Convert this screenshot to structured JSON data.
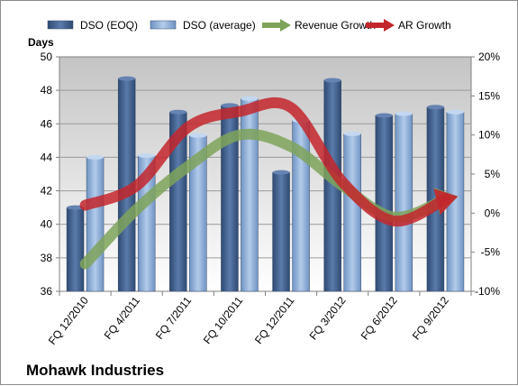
{
  "chart_data": {
    "type": "bar",
    "company": "Mohawk Industries",
    "ylabel": "Days",
    "ylim": [
      36,
      50
    ],
    "y_ticks": [
      "36",
      "38",
      "40",
      "42",
      "44",
      "46",
      "48",
      "50"
    ],
    "y2lim": [
      -10,
      20
    ],
    "y2_ticks": [
      "-10%",
      "-5%",
      "0%",
      "5%",
      "10%",
      "15%",
      "20%"
    ],
    "categories": [
      "FQ 12/2010",
      "FQ 4/2011",
      "FQ 7/2011",
      "FQ 10/2011",
      "FQ 12/2011",
      "FQ 3/2012",
      "FQ 6/2012",
      "FQ 9/2012"
    ],
    "legend_position": "top",
    "grid": "horizontal",
    "series": [
      {
        "name": "DSO (EOQ)",
        "type": "bar",
        "axis": "left",
        "color": "#4a6894",
        "values": [
          41.0,
          48.7,
          46.7,
          47.1,
          43.1,
          48.6,
          46.5,
          47.0
        ]
      },
      {
        "name": "DSO (average)",
        "type": "bar",
        "axis": "left",
        "color": "#8eb0db",
        "values": [
          44.0,
          44.1,
          45.3,
          47.5,
          46.2,
          45.4,
          46.6,
          46.7
        ]
      },
      {
        "name": "Revenue Growth",
        "type": "line",
        "axis": "right",
        "color": "#7ea35a",
        "values": [
          -6.5,
          0.5,
          6.0,
          10.0,
          8.5,
          3.5,
          -0.5,
          1.8
        ]
      },
      {
        "name": "AR Growth",
        "type": "line",
        "axis": "right",
        "color": "#c3262b",
        "values": [
          1.0,
          3.5,
          11.0,
          13.0,
          13.5,
          4.0,
          -1.0,
          1.8
        ]
      }
    ]
  }
}
